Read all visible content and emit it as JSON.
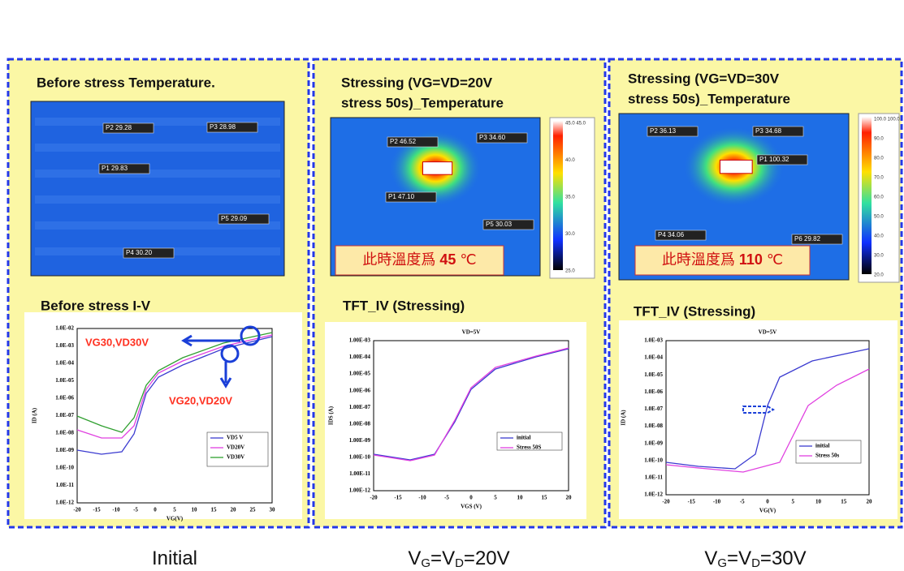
{
  "panels": [
    {
      "title": [
        "Before stress Temperature."
      ],
      "thermal_labels": [
        "P2 29.28",
        "P3 28.98",
        "P1 29.83",
        "P5 29.09",
        "P4 30.20"
      ],
      "iv_title": "Before stress I-V",
      "iv": {
        "yticks": [
          "1.0E-02",
          "1.0E-03",
          "1.0E-04",
          "1.0E-05",
          "1.0E-06",
          "1.0E-07",
          "1.0E-08",
          "1.0E-09",
          "1.0E-10",
          "1.0E-11",
          "1.0E-12"
        ],
        "xticks": [
          -20,
          -15,
          -10,
          -5,
          0,
          5,
          10,
          15,
          20,
          25,
          30
        ],
        "xlabel": "VG(V)",
        "ylabel": "ID (A)",
        "legend": [
          "VD5 V",
          "VD20V",
          "VD30V"
        ],
        "annotations": [
          "VG30,VD30V",
          "VG20,VD20V"
        ]
      },
      "caption": {
        "text": "Initial"
      }
    },
    {
      "title": [
        "Stressing (VG=VD=20V",
        "stress 50s)_Temperature"
      ],
      "thermal_labels": [
        "P2 46.52",
        "P3 34.60",
        "P1 47.10",
        "P5 30.03"
      ],
      "note": [
        "此時溫度爲 ",
        "45",
        " ℃"
      ],
      "scale": [
        "45.0  45.0",
        "40.0",
        "35.0",
        "30.0",
        "25.0"
      ],
      "iv_title": "TFT_IV (Stressing)",
      "iv": {
        "plot_title": "VD=5V",
        "yticks": [
          "1.00E-03",
          "1.00E-04",
          "1.00E-05",
          "1.00E-06",
          "1.00E-07",
          "1.00E-08",
          "1.00E-09",
          "1.00E-10",
          "1.00E-11",
          "1.00E-12"
        ],
        "xticks": [
          -20,
          -15,
          -10,
          -5,
          0,
          5,
          10,
          15,
          20
        ],
        "xlabel": "VGS (V)",
        "ylabel": "IDS (A)",
        "legend": [
          "initial",
          "Stress 50S"
        ]
      },
      "caption": {
        "v": "V",
        "s1": "G",
        "mid": "=V",
        "s2": "D",
        "rest": "=20V"
      }
    },
    {
      "title": [
        "Stressing (VG=VD=30V",
        "stress 50s)_Temperature"
      ],
      "thermal_labels": [
        "P2 36.13",
        "P3 34.68",
        "P1 100.32",
        "P4 34.06",
        "P6 29.82"
      ],
      "note": [
        "此時溫度爲 ",
        "110",
        " ℃"
      ],
      "scale": [
        "100.0 100.0",
        "90.0",
        "80.0",
        "70.0",
        "60.0",
        "50.0",
        "40.0",
        "30.0",
        "20.0"
      ],
      "iv_title": "TFT_IV (Stressing)",
      "iv": {
        "plot_title": "VD=5V",
        "yticks": [
          "1.0E-03",
          "1.0E-04",
          "1.0E-05",
          "1.0E-06",
          "1.0E-07",
          "1.0E-08",
          "1.0E-09",
          "1.0E-10",
          "1.0E-11",
          "1.0E-12"
        ],
        "xticks": [
          -20,
          -15,
          -10,
          -5,
          0,
          5,
          10,
          15,
          20
        ],
        "xlabel": "VG(V)",
        "ylabel": "ID (A)",
        "legend": [
          "initial",
          "Stress 50s"
        ]
      },
      "caption": {
        "v": "V",
        "s1": "G",
        "mid": "=V",
        "s2": "D",
        "rest": "=30V"
      }
    }
  ]
}
